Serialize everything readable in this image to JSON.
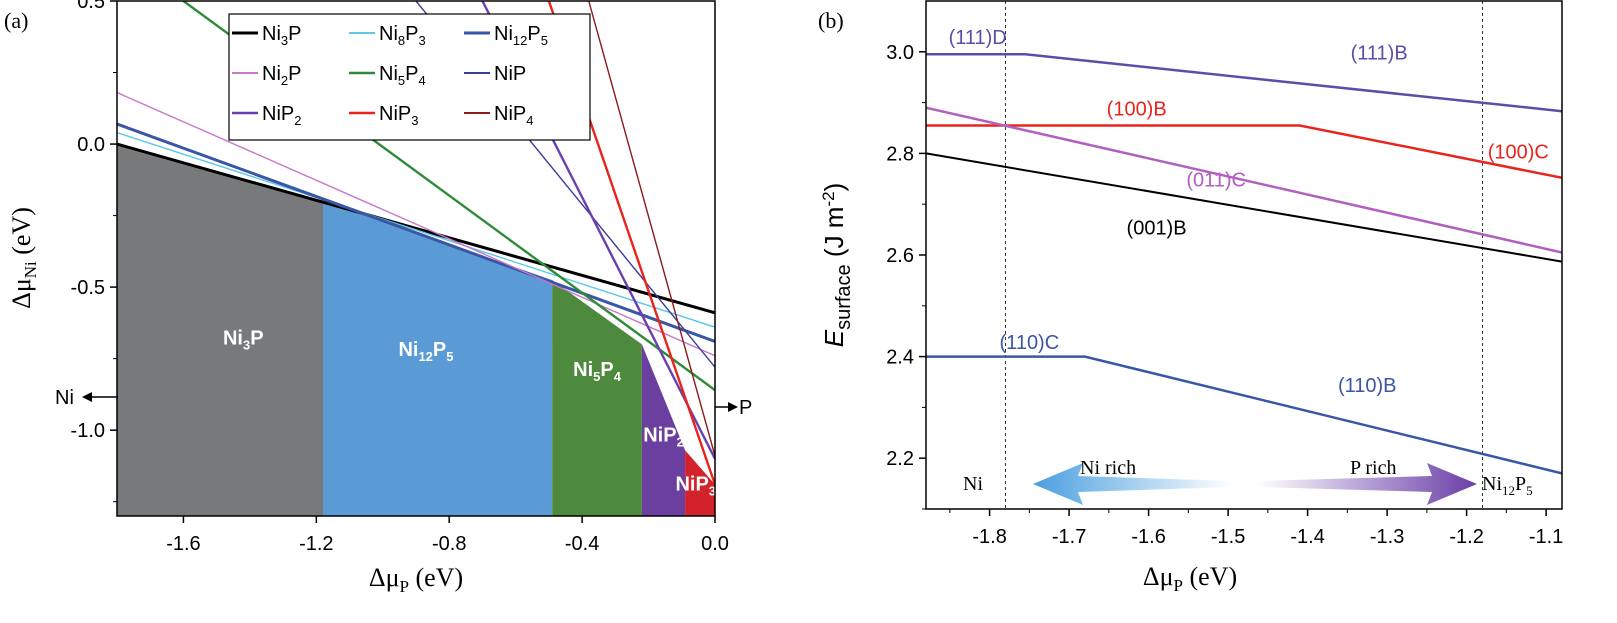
{
  "chart_data": [
    {
      "panel_label": "(a)",
      "type": "area",
      "xlabel": {
        "sym": "Δμ",
        "sub": "P",
        "unit": " (eV)"
      },
      "ylabel": {
        "sym": "Δμ",
        "sub": "Ni",
        "unit": " (eV)"
      },
      "xlim": [
        -1.8,
        0.0
      ],
      "ylim": [
        -1.3,
        0.5
      ],
      "xticks": [
        {
          "v": -1.6,
          "label": "-1.6"
        },
        {
          "v": -1.2,
          "label": "-1.2"
        },
        {
          "v": -0.8,
          "label": "-0.8"
        },
        {
          "v": -0.4,
          "label": "-0.4"
        },
        {
          "v": 0.0,
          "label": "0.0"
        }
      ],
      "yticks": [
        {
          "v": 0.5,
          "label": "0.5"
        },
        {
          "v": 0.0,
          "label": "0.0"
        },
        {
          "v": -0.5,
          "label": "-0.5"
        },
        {
          "v": -1.0,
          "label": "-1.0"
        }
      ],
      "regions": [
        {
          "name": "Ni3P",
          "label": [
            "Ni",
            "3",
            "P",
            ""
          ],
          "color": "#78797b",
          "text_color": "#ffffff",
          "label_at": [
            -1.42,
            -0.7
          ],
          "points": [
            [
              -1.8,
              0.0
            ],
            [
              -1.18,
              -0.2
            ],
            [
              -1.18,
              -1.3
            ],
            [
              -1.8,
              -1.3
            ]
          ]
        },
        {
          "name": "Ni12P5",
          "label": [
            "Ni",
            "12",
            "P",
            "5"
          ],
          "color": "#5b9bd5",
          "text_color": "#ffffff",
          "label_at": [
            -0.87,
            -0.74
          ],
          "points": [
            [
              -1.18,
              -0.2
            ],
            [
              -0.49,
              -0.475
            ],
            [
              -0.49,
              -1.3
            ],
            [
              -1.18,
              -1.3
            ]
          ]
        },
        {
          "name": "Ni5P4",
          "label": [
            "Ni",
            "5",
            "P",
            "4"
          ],
          "color": "#4e8a3e",
          "text_color": "#ffffff",
          "label_at": [
            -0.355,
            -0.81
          ],
          "points": [
            [
              -0.49,
              -0.475
            ],
            [
              -0.22,
              -0.7
            ],
            [
              -0.22,
              -1.3
            ],
            [
              -0.49,
              -1.3
            ]
          ]
        },
        {
          "name": "NiP2",
          "label": [
            "NiP",
            "2",
            "",
            ""
          ],
          "color": "#6a3fa0",
          "text_color": "#ffffff",
          "label_at": [
            -0.155,
            -1.04
          ],
          "points": [
            [
              -0.22,
              -0.7
            ],
            [
              -0.09,
              -1.07
            ],
            [
              -0.09,
              -1.3
            ],
            [
              -0.22,
              -1.3
            ]
          ]
        },
        {
          "name": "NiP3",
          "label": [
            "NiP",
            "3",
            "",
            ""
          ],
          "color": "#d2232a",
          "text_color": "#ffffff",
          "label_at": [
            -0.058,
            -1.21
          ],
          "points": [
            [
              -0.09,
              -1.07
            ],
            [
              0.0,
              -1.19
            ],
            [
              0.0,
              -1.3
            ],
            [
              -0.09,
              -1.3
            ]
          ]
        }
      ],
      "series": [
        {
          "name": "Ni3P",
          "label": [
            "Ni",
            "3",
            "P",
            ""
          ],
          "color": "#000000",
          "width": 3,
          "x": [
            -1.8,
            0.0
          ],
          "y": [
            0.0,
            -0.59
          ]
        },
        {
          "name": "Ni8P3",
          "label": [
            "Ni",
            "8",
            "P",
            "3"
          ],
          "color": "#5bc8e8",
          "width": 1.4,
          "x": [
            -1.8,
            0.0
          ],
          "y": [
            0.04,
            -0.64
          ]
        },
        {
          "name": "Ni12P5",
          "label": [
            "Ni",
            "12",
            "P",
            "5"
          ],
          "color": "#3a56a6",
          "width": 3,
          "x": [
            -1.8,
            0.0
          ],
          "y": [
            0.07,
            -0.69
          ]
        },
        {
          "name": "Ni2P",
          "label": [
            "Ni",
            "2",
            "P",
            ""
          ],
          "color": "#c878c8",
          "width": 1.4,
          "x": [
            -1.8,
            0.0
          ],
          "y": [
            0.18,
            -0.74
          ]
        },
        {
          "name": "Ni5P4",
          "label": [
            "Ni",
            "5",
            "P",
            "4"
          ],
          "color": "#2e8b3a",
          "width": 2.4,
          "x": [
            -1.6,
            0.0
          ],
          "y": [
            0.5,
            -0.86
          ]
        },
        {
          "name": "NiP",
          "label": [
            "NiP",
            "",
            "",
            ""
          ],
          "color": "#3a3d9c",
          "width": 1.4,
          "x": [
            -0.9,
            0.0
          ],
          "y": [
            0.5,
            -0.78
          ]
        },
        {
          "name": "NiP2",
          "label": [
            "NiP",
            "2",
            "",
            ""
          ],
          "color": "#6a40b0",
          "width": 2.4,
          "x": [
            -0.7,
            0.0
          ],
          "y": [
            0.5,
            -1.1
          ]
        },
        {
          "name": "NiP3",
          "label": [
            "NiP",
            "3",
            "",
            ""
          ],
          "color": "#e8241c",
          "width": 2.4,
          "x": [
            -0.5,
            0.0
          ],
          "y": [
            0.5,
            -1.19
          ]
        },
        {
          "name": "NiP4",
          "label": [
            "NiP",
            "4",
            "",
            ""
          ],
          "color": "#8b1a1a",
          "width": 1.4,
          "x": [
            -0.38,
            0.0
          ],
          "y": [
            0.5,
            -1.09
          ]
        }
      ],
      "legend": {
        "position": "top",
        "columns": 3
      },
      "annotations": [
        {
          "text": "Ni",
          "points": "left"
        },
        {
          "text": "P",
          "points": "right"
        }
      ]
    },
    {
      "panel_label": "(b)",
      "type": "line",
      "xlabel": {
        "sym": "Δμ",
        "sub": "P",
        "unit": " (eV)"
      },
      "ylabel": {
        "sym": "E",
        "sub": "surface",
        "unit": " (J m",
        "sup": "-2",
        "close": ")"
      },
      "xlim": [
        -1.88,
        -1.08
      ],
      "ylim": [
        2.1,
        3.1
      ],
      "xticks": [
        {
          "v": -1.8,
          "label": "-1.8"
        },
        {
          "v": -1.7,
          "label": "-1.7"
        },
        {
          "v": -1.6,
          "label": "-1.6"
        },
        {
          "v": -1.5,
          "label": "-1.5"
        },
        {
          "v": -1.4,
          "label": "-1.4"
        },
        {
          "v": -1.3,
          "label": "-1.3"
        },
        {
          "v": -1.2,
          "label": "-1.2"
        },
        {
          "v": -1.1,
          "label": "-1.1"
        }
      ],
      "yticks": [
        {
          "v": 3.0,
          "label": "3.0"
        },
        {
          "v": 2.8,
          "label": "2.8"
        },
        {
          "v": 2.6,
          "label": "2.6"
        },
        {
          "v": 2.4,
          "label": "2.4"
        },
        {
          "v": 2.2,
          "label": "2.2"
        }
      ],
      "vlines": [
        -1.78,
        -1.18
      ],
      "series": [
        {
          "name": "(111)",
          "color": "#5a4fa8",
          "width": 2.5,
          "x": [
            -1.88,
            -1.755,
            -1.08
          ],
          "y": [
            2.995,
            2.995,
            2.883
          ]
        },
        {
          "name": "(100)",
          "color": "#e8241c",
          "width": 2.5,
          "x": [
            -1.88,
            -1.41,
            -1.08
          ],
          "y": [
            2.855,
            2.855,
            2.752
          ]
        },
        {
          "name": "(011)",
          "color": "#b25fc0",
          "width": 2.5,
          "x": [
            -1.88,
            -1.08
          ],
          "y": [
            2.89,
            2.605
          ]
        },
        {
          "name": "(001)",
          "color": "#000000",
          "width": 2,
          "x": [
            -1.88,
            -1.08
          ],
          "y": [
            2.8,
            2.587
          ]
        },
        {
          "name": "(110)",
          "color": "#3a56a6",
          "width": 2.5,
          "x": [
            -1.88,
            -1.68,
            -1.08
          ],
          "y": [
            2.4,
            2.4,
            2.17
          ]
        }
      ],
      "line_labels": [
        {
          "text": "(111)D",
          "x": -1.815,
          "y": 3.015,
          "color": "#5a4fa8"
        },
        {
          "text": "(111)B",
          "x": -1.31,
          "y": 2.985,
          "color": "#5a4fa8"
        },
        {
          "text": "(100)B",
          "x": -1.615,
          "y": 2.875,
          "color": "#e8241c"
        },
        {
          "text": "(100)C",
          "x": -1.135,
          "y": 2.79,
          "color": "#e8241c"
        },
        {
          "text": "(011)C",
          "x": -1.515,
          "y": 2.735,
          "color": "#b25fc0"
        },
        {
          "text": "(001)B",
          "x": -1.59,
          "y": 2.64,
          "color": "#000000"
        },
        {
          "text": "(110)C",
          "x": -1.75,
          "y": 2.415,
          "color": "#3a56a6"
        },
        {
          "text": "(110)B",
          "x": -1.325,
          "y": 2.33,
          "color": "#3a56a6"
        }
      ],
      "annotations": {
        "left_end": "Ni",
        "left_arrow": "Ni rich",
        "right_arrow": "P rich",
        "right_end": {
          "base": "Ni",
          "sub1": "12",
          "mid": "P",
          "sub2": "5"
        },
        "left_color": "#4a9fe0",
        "right_color": "#6a3fa8"
      }
    }
  ]
}
